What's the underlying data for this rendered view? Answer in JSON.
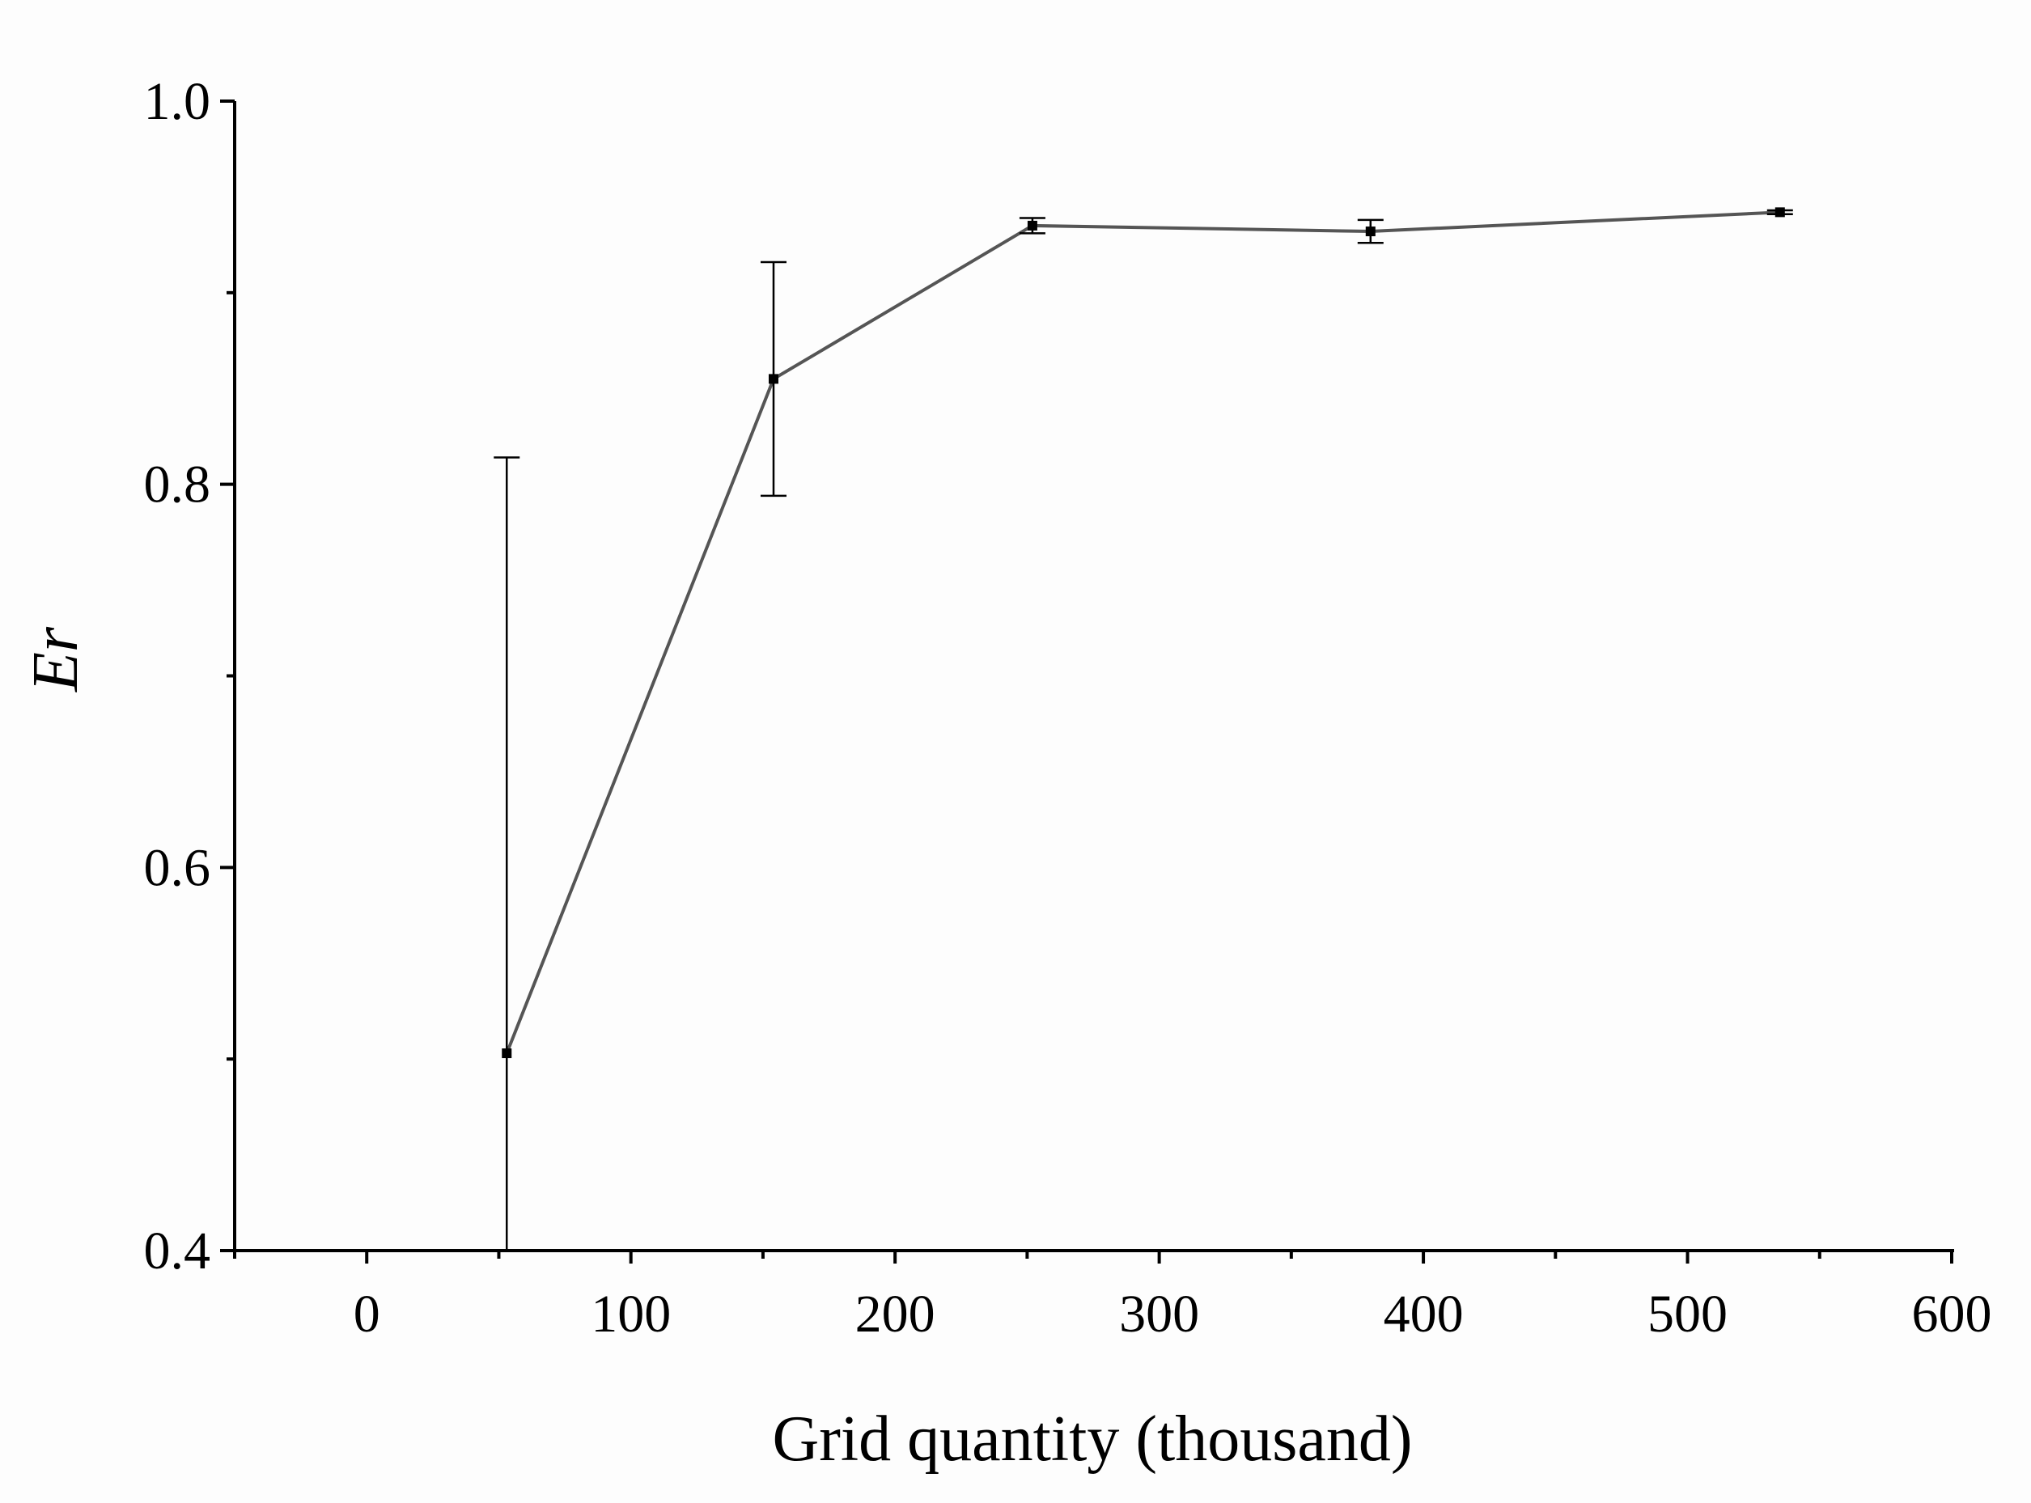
{
  "chart_data": {
    "type": "line",
    "title": "",
    "xlabel": "Grid quantity (thousand)",
    "ylabel": "Er",
    "xlim": [
      -50,
      600
    ],
    "ylim": [
      0.4,
      1.0
    ],
    "x_ticks": [
      0,
      100,
      200,
      300,
      400,
      500,
      600
    ],
    "x_tick_labels": [
      "0",
      "100",
      "200",
      "300",
      "400",
      "500",
      "600"
    ],
    "y_ticks": [
      0.4,
      0.6,
      0.8,
      1.0
    ],
    "y_tick_labels": [
      "0.4",
      "0.6",
      "0.8",
      "1.0"
    ],
    "y_minor_ticks": [
      0.5,
      0.7,
      0.9
    ],
    "x_minor_ticks": [
      -50,
      50,
      150,
      250,
      350,
      450,
      550
    ],
    "grid": false,
    "series": [
      {
        "name": "Er",
        "x": [
          53,
          154,
          252,
          380,
          535
        ],
        "y": [
          0.503,
          0.855,
          0.935,
          0.932,
          0.942
        ],
        "error_upper": [
          0.814,
          0.916,
          0.939,
          0.938,
          0.943
        ],
        "error_lower": [
          0.4,
          0.794,
          0.931,
          0.926,
          0.941
        ],
        "color": "#555555"
      }
    ]
  }
}
